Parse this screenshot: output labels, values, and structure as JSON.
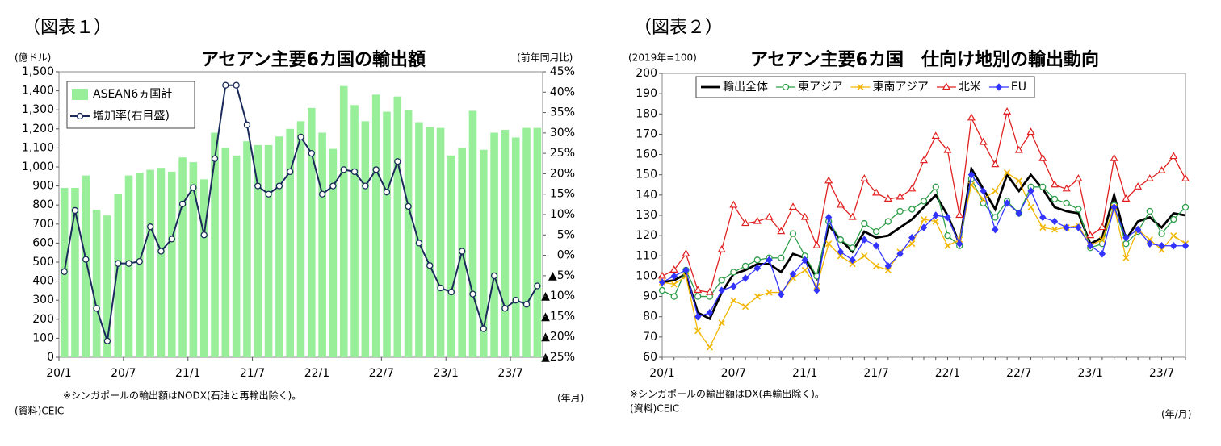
{
  "chart_data": [
    {
      "type": "combo",
      "figure_label": "（図表１）",
      "title": "アセアン主要6カ国の輸出額",
      "y_unit": "(億ドル)",
      "y2_unit": "(前年同月比)",
      "x_unit": "(年月)",
      "note": "※シンガポールの輸出額はNODX(石油と再輸出除く)。",
      "source": "(資料)CEIC",
      "categories": [
        "20/1",
        null,
        null,
        null,
        null,
        null,
        "20/7",
        null,
        null,
        null,
        null,
        null,
        "21/1",
        null,
        null,
        null,
        null,
        null,
        "21/7",
        null,
        null,
        null,
        null,
        null,
        "22/1",
        null,
        null,
        null,
        null,
        null,
        "22/7",
        null,
        null,
        null,
        null,
        null,
        "23/1",
        null,
        null,
        null,
        null,
        null,
        "23/7",
        null,
        null
      ],
      "series": [
        {
          "name": "ASEAN6ヵ国計",
          "type": "bar",
          "color": "#99ee99",
          "values": [
            890,
            890,
            955,
            775,
            745,
            860,
            955,
            970,
            985,
            995,
            975,
            1050,
            1025,
            935,
            1180,
            1100,
            1060,
            1135,
            1115,
            1115,
            1160,
            1200,
            1240,
            1310,
            1180,
            1095,
            1425,
            1325,
            1240,
            1380,
            1290,
            1370,
            1300,
            1235,
            1210,
            1205,
            1060,
            1100,
            1295,
            1090,
            1180,
            1195,
            1155,
            1205,
            1205
          ]
        },
        {
          "name": "増加率(右目盛)",
          "type": "line",
          "axis": "y2",
          "color": "#1a2a5a",
          "marker": "circle",
          "values": [
            -4,
            11,
            -1,
            -13,
            -21,
            -2,
            -2,
            -1.5,
            7,
            1,
            4,
            12.6,
            16.6,
            5,
            23.7,
            41.7,
            41.7,
            32,
            17,
            15,
            17,
            20.5,
            29,
            25,
            15,
            17,
            21,
            20.5,
            17,
            21,
            15.5,
            23,
            12,
            3,
            -2.5,
            -8,
            -9,
            1,
            -9.5,
            -18,
            -5,
            -13,
            -11,
            -12,
            -7.5
          ]
        }
      ],
      "ylim": [
        0,
        1500
      ],
      "yticks": [
        0,
        100,
        200,
        300,
        400,
        500,
        600,
        700,
        800,
        900,
        {
          "value": 1000,
          "label": "1,000"
        },
        {
          "value": 1100,
          "label": "1,100"
        },
        {
          "value": 1200,
          "label": "1,200"
        },
        {
          "value": 1300,
          "label": "1,300"
        },
        {
          "value": 1400,
          "label": "1,400"
        },
        {
          "value": 1500,
          "label": "1,500"
        }
      ],
      "y2lim": [
        -25,
        45
      ],
      "y2ticks": [
        {
          "value": -25,
          "label": "▲25%"
        },
        {
          "value": -20,
          "label": "▲20%"
        },
        {
          "value": -15,
          "label": "▲15%"
        },
        {
          "value": -10,
          "label": "▲10%"
        },
        {
          "value": -5,
          "label": "▲5%"
        },
        {
          "value": 0,
          "label": "0%"
        },
        {
          "value": 5,
          "label": "5%"
        },
        {
          "value": 10,
          "label": "10%"
        },
        {
          "value": 15,
          "label": "15%"
        },
        {
          "value": 20,
          "label": "20%"
        },
        {
          "value": 25,
          "label": "25%"
        },
        {
          "value": 30,
          "label": "30%"
        },
        {
          "value": 35,
          "label": "35%"
        },
        {
          "value": 40,
          "label": "40%"
        },
        {
          "value": 45,
          "label": "45%"
        }
      ],
      "grid": false,
      "legend": "upper left"
    },
    {
      "type": "line",
      "figure_label": "（図表２）",
      "title": "アセアン主要6カ国　仕向け地別の輸出動向",
      "y_unit": "(2019年=100)",
      "x_unit": "(年/月)",
      "note": "※シンガポールの輸出額はDX(再輸出除く)。",
      "source": "(資料)CEIC",
      "categories": [
        "20/1",
        null,
        null,
        null,
        null,
        null,
        "20/7",
        null,
        null,
        null,
        null,
        null,
        "21/1",
        null,
        null,
        null,
        null,
        null,
        "21/7",
        null,
        null,
        null,
        null,
        null,
        "22/1",
        null,
        null,
        null,
        null,
        null,
        "22/7",
        null,
        null,
        null,
        null,
        null,
        "23/1",
        null,
        null,
        null,
        null,
        null,
        "23/7",
        null,
        null
      ],
      "series": [
        {
          "name": "輸出全体",
          "color": "#000000",
          "values": [
            97,
            98,
            101,
            82,
            79,
            92,
            101,
            103,
            106,
            106,
            102,
            111,
            109,
            99,
            125,
            118,
            112,
            122,
            119,
            120,
            124,
            128,
            134,
            140,
            130,
            116,
            153,
            143,
            133,
            150,
            142,
            150,
            143,
            134,
            132,
            131,
            116,
            119,
            140,
            118,
            127,
            129,
            124,
            131,
            130
          ]
        },
        {
          "name": "東アジア",
          "color": "#2e9e4a",
          "marker": "circle",
          "values": [
            93,
            90,
            103,
            90,
            90,
            98,
            102,
            105,
            108,
            109,
            109,
            121,
            110,
            100,
            127,
            118,
            114,
            126,
            122,
            127,
            132,
            133,
            137,
            144,
            120,
            115,
            148,
            136,
            129,
            137,
            131,
            144,
            144,
            138,
            136,
            133,
            114,
            116,
            135,
            116,
            122,
            132,
            121,
            128,
            134
          ]
        },
        {
          "name": "東南アジア",
          "color": "#f2b705",
          "marker": "x",
          "values": [
            97,
            96,
            100,
            73,
            65,
            77,
            88,
            85,
            90,
            92,
            92,
            99,
            103,
            95,
            116,
            110,
            106,
            110,
            105,
            103,
            112,
            116,
            128,
            127,
            115,
            118,
            145,
            138,
            142,
            151,
            147,
            134,
            124,
            123,
            124,
            125,
            115,
            118,
            134,
            109,
            123,
            118,
            113,
            120,
            116
          ]
        },
        {
          "name": "北米",
          "color": "#e02020",
          "marker": "triangle",
          "values": [
            100,
            103,
            111,
            93,
            92,
            113,
            135,
            126,
            127,
            129,
            122,
            134,
            129,
            115,
            147,
            135,
            129,
            148,
            141,
            138,
            139,
            143,
            157,
            169,
            162,
            130,
            178,
            166,
            155,
            181,
            162,
            171,
            158,
            145,
            143,
            148,
            120,
            124,
            158,
            138,
            144,
            148,
            152,
            159,
            148
          ]
        },
        {
          "name": "EU",
          "color": "#3333ff",
          "marker": "diamond",
          "values": [
            97,
            100,
            103,
            80,
            82,
            93,
            95,
            99,
            104,
            108,
            91,
            101,
            108,
            93,
            129,
            112,
            108,
            118,
            115,
            105,
            111,
            119,
            124,
            130,
            129,
            116,
            150,
            142,
            123,
            136,
            131,
            142,
            129,
            127,
            124,
            124,
            115,
            111,
            134,
            119,
            123,
            116,
            115,
            115,
            115
          ]
        }
      ],
      "ylim": [
        60,
        200
      ],
      "yticks": [
        60,
        70,
        80,
        90,
        100,
        110,
        120,
        130,
        140,
        150,
        160,
        170,
        180,
        190,
        200
      ],
      "grid": false,
      "legend": "upper center"
    }
  ]
}
